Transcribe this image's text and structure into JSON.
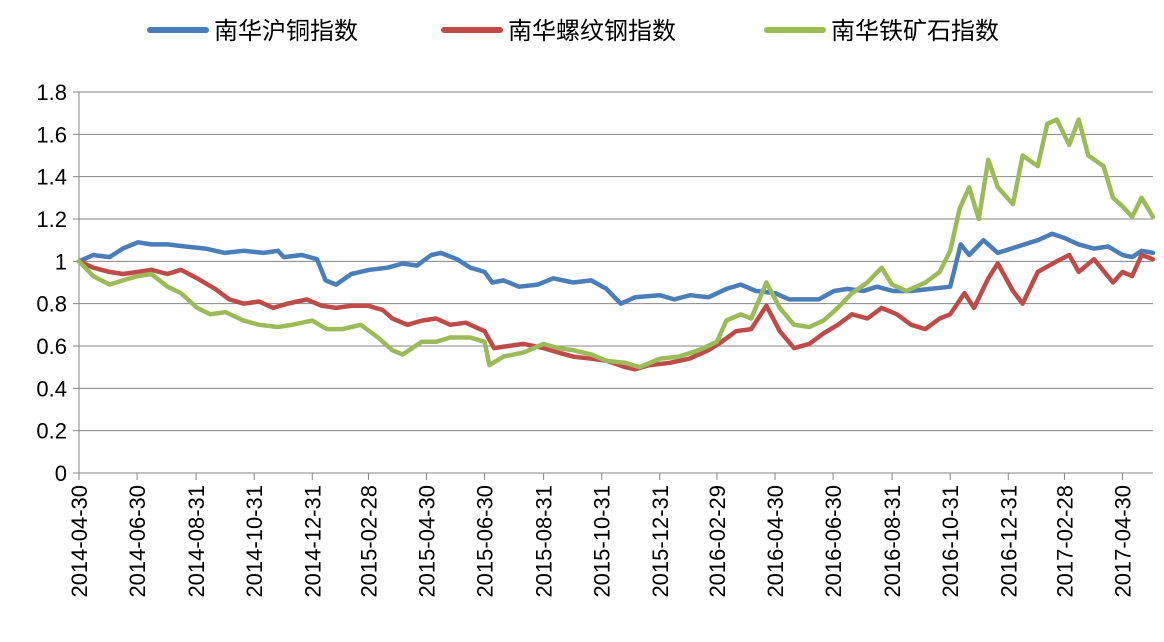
{
  "chart_data": {
    "type": "line",
    "title": "",
    "xlabel": "",
    "ylabel": "",
    "ylim": [
      0,
      1.8
    ],
    "yticks": [
      "0",
      "0.2",
      "0.4",
      "0.6",
      "0.8",
      "1",
      "1.2",
      "1.4",
      "1.6",
      "1.8"
    ],
    "ytick_values": [
      0,
      0.2,
      0.4,
      0.6,
      0.8,
      1.0,
      1.2,
      1.4,
      1.6,
      1.8
    ],
    "xticks": [
      "2014-04-30",
      "2014-06-30",
      "2014-08-31",
      "2014-10-31",
      "2014-12-31",
      "2015-02-28",
      "2015-04-30",
      "2015-06-30",
      "2015-08-31",
      "2015-10-31",
      "2015-12-31",
      "2016-02-29",
      "2016-04-30",
      "2016-06-30",
      "2016-08-31",
      "2016-10-31",
      "2016-12-31",
      "2017-02-28",
      "2017-04-30"
    ],
    "xlim": [
      "2014-04-30",
      "2017-06-01"
    ],
    "grid": "horizontal",
    "legend_position": "top",
    "series": [
      {
        "name": "南华沪铜指数",
        "color": "#4a7ebb",
        "points": [
          [
            "2014-04-30",
            1.0
          ],
          [
            "2014-05-15",
            1.03
          ],
          [
            "2014-06-01",
            1.02
          ],
          [
            "2014-06-15",
            1.06
          ],
          [
            "2014-07-01",
            1.09
          ],
          [
            "2014-07-15",
            1.08
          ],
          [
            "2014-08-01",
            1.08
          ],
          [
            "2014-08-20",
            1.07
          ],
          [
            "2014-09-10",
            1.06
          ],
          [
            "2014-09-30",
            1.04
          ],
          [
            "2014-10-20",
            1.05
          ],
          [
            "2014-11-10",
            1.04
          ],
          [
            "2014-11-25",
            1.05
          ],
          [
            "2014-12-01",
            1.02
          ],
          [
            "2014-12-20",
            1.03
          ],
          [
            "2015-01-05",
            1.01
          ],
          [
            "2015-01-14",
            0.91
          ],
          [
            "2015-01-25",
            0.89
          ],
          [
            "2015-02-10",
            0.94
          ],
          [
            "2015-03-01",
            0.96
          ],
          [
            "2015-03-20",
            0.97
          ],
          [
            "2015-04-05",
            0.99
          ],
          [
            "2015-04-20",
            0.98
          ],
          [
            "2015-05-05",
            1.03
          ],
          [
            "2015-05-15",
            1.04
          ],
          [
            "2015-06-01",
            1.01
          ],
          [
            "2015-06-15",
            0.97
          ],
          [
            "2015-06-30",
            0.95
          ],
          [
            "2015-07-08",
            0.9
          ],
          [
            "2015-07-20",
            0.91
          ],
          [
            "2015-08-05",
            0.88
          ],
          [
            "2015-08-25",
            0.89
          ],
          [
            "2015-09-10",
            0.92
          ],
          [
            "2015-10-01",
            0.9
          ],
          [
            "2015-10-20",
            0.91
          ],
          [
            "2015-11-05",
            0.87
          ],
          [
            "2015-11-20",
            0.8
          ],
          [
            "2015-12-05",
            0.83
          ],
          [
            "2015-12-31",
            0.84
          ],
          [
            "2016-01-15",
            0.82
          ],
          [
            "2016-02-01",
            0.84
          ],
          [
            "2016-02-20",
            0.83
          ],
          [
            "2016-03-10",
            0.87
          ],
          [
            "2016-03-25",
            0.89
          ],
          [
            "2016-04-10",
            0.86
          ],
          [
            "2016-04-30",
            0.85
          ],
          [
            "2016-05-15",
            0.82
          ],
          [
            "2016-06-01",
            0.82
          ],
          [
            "2016-06-15",
            0.82
          ],
          [
            "2016-07-01",
            0.86
          ],
          [
            "2016-07-15",
            0.87
          ],
          [
            "2016-08-01",
            0.86
          ],
          [
            "2016-08-15",
            0.88
          ],
          [
            "2016-09-01",
            0.86
          ],
          [
            "2016-09-20",
            0.86
          ],
          [
            "2016-10-10",
            0.87
          ],
          [
            "2016-10-31",
            0.88
          ],
          [
            "2016-11-11",
            1.08
          ],
          [
            "2016-11-20",
            1.03
          ],
          [
            "2016-12-05",
            1.1
          ],
          [
            "2016-12-20",
            1.04
          ],
          [
            "2017-01-10",
            1.07
          ],
          [
            "2017-01-31",
            1.1
          ],
          [
            "2017-02-15",
            1.13
          ],
          [
            "2017-02-28",
            1.11
          ],
          [
            "2017-03-15",
            1.08
          ],
          [
            "2017-03-31",
            1.06
          ],
          [
            "2017-04-15",
            1.07
          ],
          [
            "2017-04-30",
            1.03
          ],
          [
            "2017-05-10",
            1.02
          ],
          [
            "2017-05-20",
            1.05
          ],
          [
            "2017-06-01",
            1.04
          ]
        ]
      },
      {
        "name": "南华螺纹钢指数",
        "color": "#be4b48",
        "points": [
          [
            "2014-04-30",
            1.0
          ],
          [
            "2014-05-15",
            0.97
          ],
          [
            "2014-06-01",
            0.95
          ],
          [
            "2014-06-15",
            0.94
          ],
          [
            "2014-07-01",
            0.95
          ],
          [
            "2014-07-15",
            0.96
          ],
          [
            "2014-08-01",
            0.94
          ],
          [
            "2014-08-15",
            0.96
          ],
          [
            "2014-09-01",
            0.92
          ],
          [
            "2014-09-20",
            0.87
          ],
          [
            "2014-10-05",
            0.82
          ],
          [
            "2014-10-20",
            0.8
          ],
          [
            "2014-11-05",
            0.81
          ],
          [
            "2014-11-20",
            0.78
          ],
          [
            "2014-12-05",
            0.8
          ],
          [
            "2014-12-25",
            0.82
          ],
          [
            "2015-01-10",
            0.79
          ],
          [
            "2015-01-25",
            0.78
          ],
          [
            "2015-02-10",
            0.79
          ],
          [
            "2015-02-28",
            0.79
          ],
          [
            "2015-03-15",
            0.77
          ],
          [
            "2015-03-25",
            0.73
          ],
          [
            "2015-04-10",
            0.7
          ],
          [
            "2015-04-25",
            0.72
          ],
          [
            "2015-05-10",
            0.73
          ],
          [
            "2015-05-25",
            0.7
          ],
          [
            "2015-06-10",
            0.71
          ],
          [
            "2015-06-30",
            0.67
          ],
          [
            "2015-07-10",
            0.59
          ],
          [
            "2015-07-25",
            0.6
          ],
          [
            "2015-08-10",
            0.61
          ],
          [
            "2015-08-31",
            0.59
          ],
          [
            "2015-09-15",
            0.57
          ],
          [
            "2015-10-01",
            0.55
          ],
          [
            "2015-10-20",
            0.54
          ],
          [
            "2015-11-05",
            0.53
          ],
          [
            "2015-11-25",
            0.5
          ],
          [
            "2015-12-05",
            0.49
          ],
          [
            "2015-12-20",
            0.51
          ],
          [
            "2016-01-10",
            0.52
          ],
          [
            "2016-01-31",
            0.54
          ],
          [
            "2016-02-20",
            0.58
          ],
          [
            "2016-03-05",
            0.62
          ],
          [
            "2016-03-20",
            0.67
          ],
          [
            "2016-04-05",
            0.68
          ],
          [
            "2016-04-21",
            0.79
          ],
          [
            "2016-05-05",
            0.67
          ],
          [
            "2016-05-20",
            0.59
          ],
          [
            "2016-06-05",
            0.61
          ],
          [
            "2016-06-20",
            0.66
          ],
          [
            "2016-07-05",
            0.7
          ],
          [
            "2016-07-20",
            0.75
          ],
          [
            "2016-08-05",
            0.73
          ],
          [
            "2016-08-20",
            0.78
          ],
          [
            "2016-09-05",
            0.75
          ],
          [
            "2016-09-20",
            0.7
          ],
          [
            "2016-10-05",
            0.68
          ],
          [
            "2016-10-20",
            0.73
          ],
          [
            "2016-10-31",
            0.75
          ],
          [
            "2016-11-15",
            0.85
          ],
          [
            "2016-11-25",
            0.78
          ],
          [
            "2016-12-10",
            0.92
          ],
          [
            "2016-12-20",
            0.99
          ],
          [
            "2017-01-05",
            0.86
          ],
          [
            "2017-01-15",
            0.8
          ],
          [
            "2017-01-31",
            0.95
          ],
          [
            "2017-02-20",
            1.0
          ],
          [
            "2017-03-05",
            1.03
          ],
          [
            "2017-03-15",
            0.95
          ],
          [
            "2017-03-31",
            1.01
          ],
          [
            "2017-04-20",
            0.9
          ],
          [
            "2017-04-30",
            0.95
          ],
          [
            "2017-05-10",
            0.93
          ],
          [
            "2017-05-20",
            1.03
          ],
          [
            "2017-06-01",
            1.01
          ]
        ]
      },
      {
        "name": "南华铁矿石指数",
        "color": "#9bbb59",
        "points": [
          [
            "2014-04-30",
            1.0
          ],
          [
            "2014-05-15",
            0.93
          ],
          [
            "2014-06-01",
            0.89
          ],
          [
            "2014-06-15",
            0.91
          ],
          [
            "2014-07-01",
            0.93
          ],
          [
            "2014-07-15",
            0.94
          ],
          [
            "2014-08-01",
            0.88
          ],
          [
            "2014-08-15",
            0.85
          ],
          [
            "2014-09-01",
            0.78
          ],
          [
            "2014-09-15",
            0.75
          ],
          [
            "2014-10-01",
            0.76
          ],
          [
            "2014-10-20",
            0.72
          ],
          [
            "2014-11-05",
            0.7
          ],
          [
            "2014-11-25",
            0.69
          ],
          [
            "2014-12-10",
            0.7
          ],
          [
            "2014-12-31",
            0.72
          ],
          [
            "2015-01-15",
            0.68
          ],
          [
            "2015-02-01",
            0.68
          ],
          [
            "2015-02-20",
            0.7
          ],
          [
            "2015-03-10",
            0.64
          ],
          [
            "2015-03-25",
            0.58
          ],
          [
            "2015-04-05",
            0.56
          ],
          [
            "2015-04-25",
            0.62
          ],
          [
            "2015-05-10",
            0.62
          ],
          [
            "2015-05-25",
            0.64
          ],
          [
            "2015-06-15",
            0.64
          ],
          [
            "2015-06-30",
            0.62
          ],
          [
            "2015-07-05",
            0.51
          ],
          [
            "2015-07-20",
            0.55
          ],
          [
            "2015-08-10",
            0.57
          ],
          [
            "2015-08-31",
            0.61
          ],
          [
            "2015-09-15",
            0.59
          ],
          [
            "2015-10-01",
            0.58
          ],
          [
            "2015-10-20",
            0.56
          ],
          [
            "2015-11-05",
            0.53
          ],
          [
            "2015-11-25",
            0.52
          ],
          [
            "2015-12-10",
            0.5
          ],
          [
            "2015-12-31",
            0.54
          ],
          [
            "2016-01-20",
            0.55
          ],
          [
            "2016-02-10",
            0.58
          ],
          [
            "2016-02-29",
            0.62
          ],
          [
            "2016-03-10",
            0.72
          ],
          [
            "2016-03-25",
            0.75
          ],
          [
            "2016-04-05",
            0.73
          ],
          [
            "2016-04-21",
            0.9
          ],
          [
            "2016-05-05",
            0.78
          ],
          [
            "2016-05-20",
            0.7
          ],
          [
            "2016-06-05",
            0.69
          ],
          [
            "2016-06-20",
            0.72
          ],
          [
            "2016-07-05",
            0.78
          ],
          [
            "2016-07-20",
            0.85
          ],
          [
            "2016-08-05",
            0.9
          ],
          [
            "2016-08-20",
            0.97
          ],
          [
            "2016-08-31",
            0.89
          ],
          [
            "2016-09-15",
            0.86
          ],
          [
            "2016-10-05",
            0.9
          ],
          [
            "2016-10-20",
            0.95
          ],
          [
            "2016-10-31",
            1.05
          ],
          [
            "2016-11-10",
            1.25
          ],
          [
            "2016-11-20",
            1.35
          ],
          [
            "2016-11-30",
            1.2
          ],
          [
            "2016-12-10",
            1.48
          ],
          [
            "2016-12-20",
            1.35
          ],
          [
            "2017-01-05",
            1.27
          ],
          [
            "2017-01-15",
            1.5
          ],
          [
            "2017-01-31",
            1.45
          ],
          [
            "2017-02-10",
            1.65
          ],
          [
            "2017-02-20",
            1.67
          ],
          [
            "2017-03-05",
            1.55
          ],
          [
            "2017-03-15",
            1.67
          ],
          [
            "2017-03-25",
            1.5
          ],
          [
            "2017-04-10",
            1.45
          ],
          [
            "2017-04-20",
            1.3
          ],
          [
            "2017-04-30",
            1.26
          ],
          [
            "2017-05-10",
            1.21
          ],
          [
            "2017-05-20",
            1.3
          ],
          [
            "2017-06-01",
            1.21
          ]
        ]
      }
    ]
  }
}
